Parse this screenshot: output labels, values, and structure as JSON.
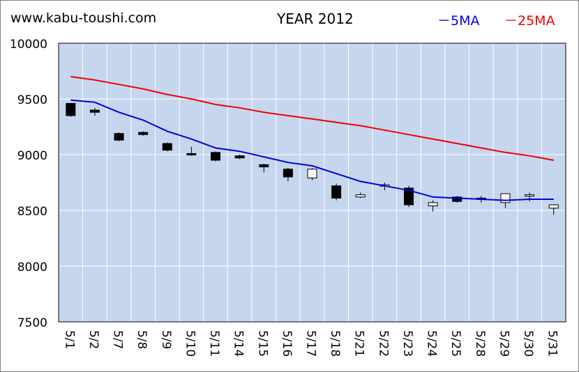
{
  "header": {
    "site": "www.kabu-toushi.com",
    "year": "YEAR 2012"
  },
  "legend": [
    {
      "label": "－5MA",
      "color": "#0000dd"
    },
    {
      "label": "－25MA",
      "color": "#ee0000"
    }
  ],
  "colors": {
    "plot_bg": "#c5d6ee",
    "grid": "#ffffff",
    "up_body": "#ffffff",
    "down_body": "#000000",
    "ma5": "#0000dd",
    "ma25": "#ee0000"
  },
  "chart_data": {
    "type": "candlestick",
    "title": "YEAR 2012",
    "ylim": [
      7500,
      10000
    ],
    "yticks": [
      "10000",
      "9500",
      "9000",
      "8500",
      "8000",
      "7500"
    ],
    "categories": [
      "5/1",
      "5/2",
      "5/7",
      "5/8",
      "5/9",
      "5/10",
      "5/11",
      "5/14",
      "5/15",
      "5/16",
      "5/17",
      "5/18",
      "5/21",
      "5/22",
      "5/23",
      "5/24",
      "5/25",
      "5/28",
      "5/29",
      "5/30",
      "5/31"
    ],
    "candles": [
      {
        "open": 9460,
        "high": 9460,
        "low": 9340,
        "close": 9350
      },
      {
        "open": 9400,
        "high": 9420,
        "low": 9350,
        "close": 9380
      },
      {
        "open": 9190,
        "high": 9200,
        "low": 9120,
        "close": 9130
      },
      {
        "open": 9200,
        "high": 9210,
        "low": 9170,
        "close": 9180
      },
      {
        "open": 9100,
        "high": 9110,
        "low": 9030,
        "close": 9040
      },
      {
        "open": 9010,
        "high": 9070,
        "low": 8990,
        "close": 9000
      },
      {
        "open": 9020,
        "high": 9030,
        "low": 8940,
        "close": 8950
      },
      {
        "open": 8990,
        "high": 9000,
        "low": 8960,
        "close": 8970
      },
      {
        "open": 8910,
        "high": 8920,
        "low": 8840,
        "close": 8890
      },
      {
        "open": 8870,
        "high": 8880,
        "low": 8760,
        "close": 8800
      },
      {
        "open": 8790,
        "high": 8880,
        "low": 8770,
        "close": 8870
      },
      {
        "open": 8720,
        "high": 8740,
        "low": 8590,
        "close": 8610
      },
      {
        "open": 8620,
        "high": 8660,
        "low": 8610,
        "close": 8640
      },
      {
        "open": 8720,
        "high": 8750,
        "low": 8680,
        "close": 8730
      },
      {
        "open": 8700,
        "high": 8720,
        "low": 8530,
        "close": 8550
      },
      {
        "open": 8540,
        "high": 8590,
        "low": 8490,
        "close": 8570
      },
      {
        "open": 8620,
        "high": 8630,
        "low": 8570,
        "close": 8580
      },
      {
        "open": 8610,
        "high": 8630,
        "low": 8570,
        "close": 8600
      },
      {
        "open": 8570,
        "high": 8650,
        "low": 8520,
        "close": 8650
      },
      {
        "open": 8630,
        "high": 8660,
        "low": 8580,
        "close": 8640
      },
      {
        "open": 8520,
        "high": 8550,
        "low": 8460,
        "close": 8550
      }
    ],
    "series": [
      {
        "name": "5MA",
        "values": [
          9490,
          9470,
          9380,
          9310,
          9210,
          9140,
          9060,
          9030,
          8980,
          8930,
          8900,
          8830,
          8760,
          8720,
          8680,
          8620,
          8610,
          8600,
          8590,
          8600,
          8600
        ]
      },
      {
        "name": "25MA",
        "values": [
          9700,
          9670,
          9630,
          9590,
          9540,
          9500,
          9450,
          9420,
          9380,
          9350,
          9320,
          9290,
          9260,
          9220,
          9180,
          9140,
          9100,
          9060,
          9020,
          8990,
          8950
        ]
      }
    ],
    "grid": true
  }
}
